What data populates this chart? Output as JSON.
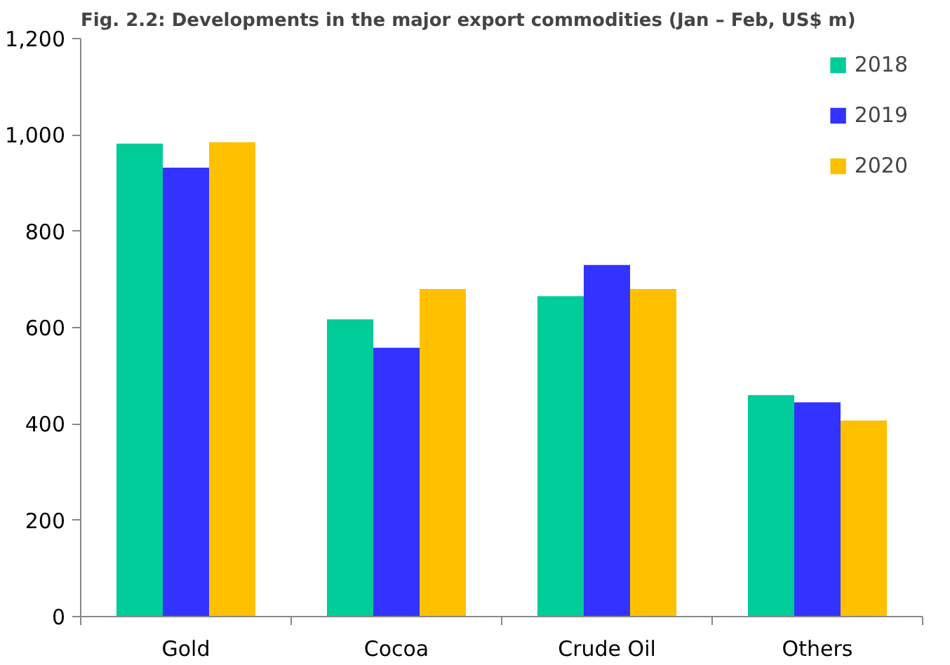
{
  "chart_data": {
    "type": "bar",
    "title": "Fig. 2.2: Developments in the major export commodities (Jan – Feb, US$ m)",
    "categories": [
      "Gold",
      "Cocoa",
      "Crude Oil",
      "Others"
    ],
    "series": [
      {
        "name": "2018",
        "color": "#00cc99",
        "values": [
          982,
          617,
          665,
          460
        ]
      },
      {
        "name": "2019",
        "color": "#3333ff",
        "values": [
          932,
          558,
          730,
          445
        ]
      },
      {
        "name": "2020",
        "color": "#ffc000",
        "values": [
          985,
          680,
          680,
          407
        ]
      }
    ],
    "ylim": [
      0,
      1200
    ],
    "yticks": [
      0,
      200,
      400,
      600,
      800,
      "1,000",
      "1,200"
    ],
    "grid": false,
    "legend": "top right"
  }
}
